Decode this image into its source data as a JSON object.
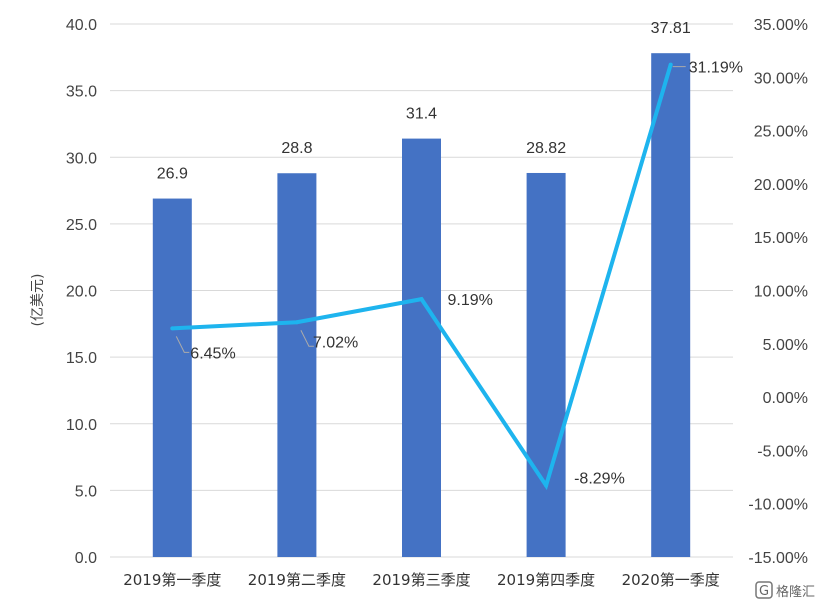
{
  "chart_data": {
    "type": "bar",
    "categories": [
      "2019第一季度",
      "2019第二季度",
      "2019第三季度",
      "2019第四季度",
      "2020第一季度"
    ],
    "series": [
      {
        "type": "bar",
        "axis": "left",
        "values": [
          26.9,
          28.8,
          31.4,
          28.82,
          37.81
        ],
        "labels": [
          "26.9",
          "28.8",
          "31.4",
          "28.82",
          "37.81"
        ],
        "color": "#4472C4"
      },
      {
        "type": "line",
        "axis": "right",
        "values": [
          6.45,
          7.02,
          9.19,
          -8.29,
          31.19
        ],
        "labels": [
          "6.45%",
          "7.02%",
          "9.19%",
          "-8.29%",
          "31.19%"
        ],
        "color": "#1EB4EE"
      }
    ],
    "ylabel": "(亿美元)",
    "ylim": [
      0,
      40
    ],
    "yticks": [
      "0.0",
      "5.0",
      "10.0",
      "15.0",
      "20.0",
      "25.0",
      "30.0",
      "35.0",
      "40.0"
    ],
    "y2lim": [
      -15,
      35
    ],
    "y2ticks": [
      "-15.00%",
      "-10.00%",
      "-5.00%",
      "0.00%",
      "5.00%",
      "10.00%",
      "15.00%",
      "20.00%",
      "25.00%",
      "30.00%",
      "35.00%"
    ],
    "grid": "horizontal"
  },
  "watermark": {
    "text": "格隆汇"
  }
}
